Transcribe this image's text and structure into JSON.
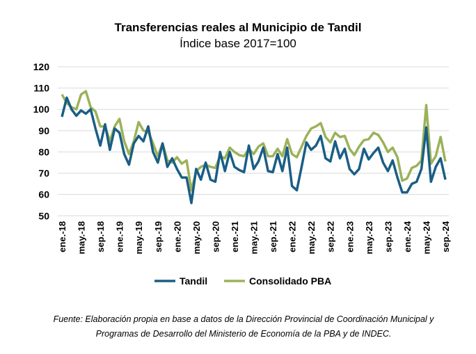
{
  "chart_data": {
    "type": "line",
    "title": "Transferencias reales al Municipio de Tandil",
    "subtitle": "Índice base 2017=100",
    "xlabel": "",
    "ylabel": "",
    "ylim": [
      50,
      120
    ],
    "yticks": [
      120,
      110,
      100,
      90,
      80,
      70,
      60,
      50
    ],
    "grid": true,
    "legend_position": "bottom",
    "x_tick_labels": [
      "ene.-18",
      "may.-18",
      "sep.-18",
      "ene.-19",
      "may.-19",
      "sep.-19",
      "ene.-20",
      "may.-20",
      "sep.-20",
      "ene.-21",
      "may.-21",
      "sep.-21",
      "ene.-22",
      "may.-22",
      "sep.-22",
      "ene.-23",
      "may.-23",
      "sep.-23",
      "ene.-24",
      "may.-24",
      "sep.-24"
    ],
    "x_start": "ene.-18",
    "x_end": "sep.-24",
    "x_frequency": "monthly",
    "series": [
      {
        "name": "Tandil",
        "color": "#1a5e85",
        "values": [
          96.5,
          105.5,
          100,
          97,
          99.5,
          98,
          100,
          91,
          83,
          93,
          81,
          91,
          89,
          79,
          74,
          84,
          87.5,
          85,
          92,
          80,
          75,
          84,
          73,
          77,
          72,
          68,
          68,
          56,
          72,
          67,
          75,
          67,
          66,
          80,
          71,
          80,
          73,
          71.5,
          70.5,
          83,
          72,
          75.5,
          82,
          71,
          70.5,
          79,
          71,
          82,
          64,
          62,
          73,
          84.5,
          81,
          83,
          87.5,
          77,
          75.5,
          85,
          77,
          81.5,
          72,
          69.5,
          72,
          81.5,
          76.5,
          79.5,
          82,
          75,
          71,
          76,
          68,
          61,
          61,
          65,
          66,
          72,
          91.5,
          66,
          73,
          77,
          67
        ]
      },
      {
        "name": "Consolidado PBA",
        "color": "#9bb25a",
        "values": [
          107,
          103,
          101,
          100,
          107,
          108.5,
          101,
          99,
          92,
          92,
          85,
          92,
          95.5,
          85,
          79,
          85,
          94,
          90,
          89.5,
          84,
          78,
          84,
          76,
          75,
          77.5,
          74.5,
          76,
          62,
          71,
          73,
          74,
          73,
          72.5,
          78,
          77,
          82,
          80,
          78.5,
          78,
          81.5,
          79,
          82.5,
          84,
          78,
          78,
          81.5,
          78,
          86,
          79,
          77.5,
          82.5,
          87.5,
          91,
          92,
          93.5,
          87,
          84.5,
          89,
          87,
          87.5,
          81.5,
          78.5,
          82.5,
          85.5,
          86,
          89,
          88,
          84.5,
          80,
          82,
          77.5,
          66.5,
          67.5,
          72.5,
          73.5,
          76,
          102,
          74.5,
          78,
          87,
          75.5
        ]
      }
    ]
  },
  "footnote": {
    "line1": "Fuente: Elaboración propia en base a datos de la Dirección Provincial de Coordinación Municipal y",
    "line2": "Programas de Desarrollo del Ministerio de Economía de la PBA y de INDEC."
  }
}
